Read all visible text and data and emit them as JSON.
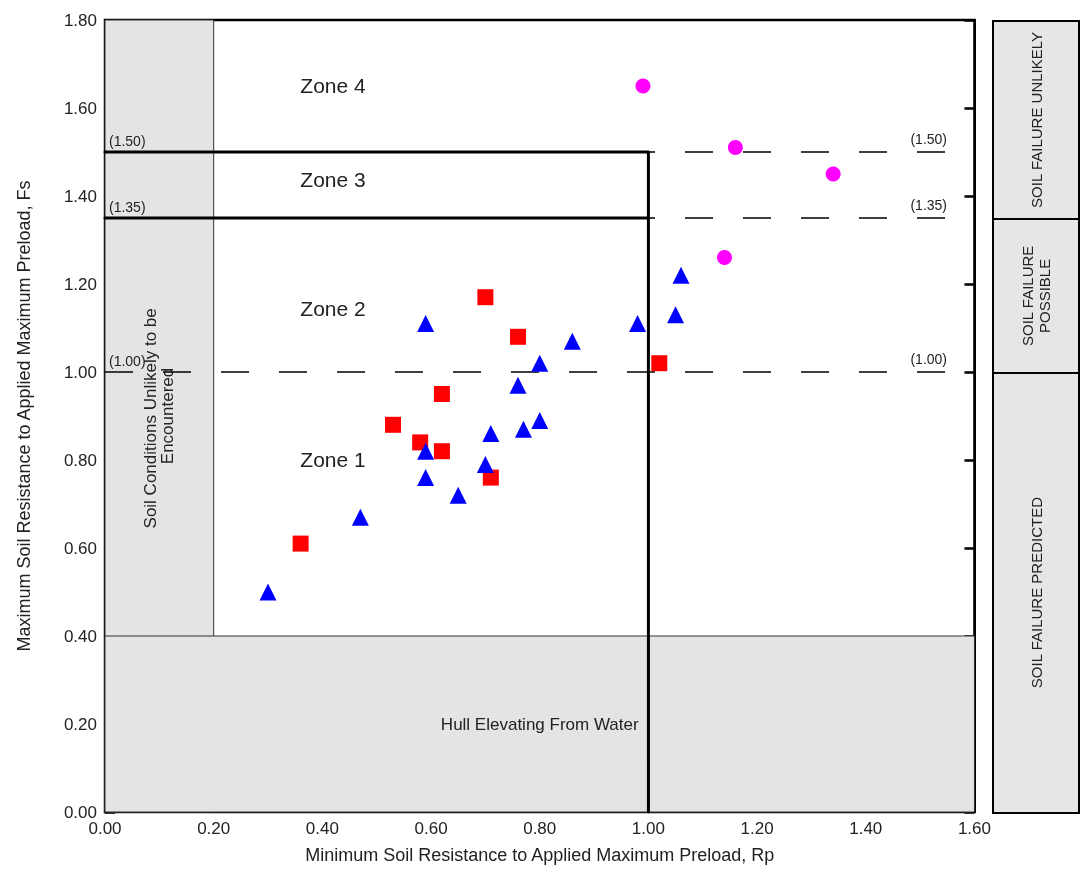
{
  "chart_data": [
    {
      "type": "scatter",
      "xlabel": "Minimum Soil Resistance to Applied Maximum Preload, Rp",
      "ylabel": "Maximum Soil Resistance to Applied Maximum Preload, Fs",
      "xlim": [
        0,
        1.6
      ],
      "ylim": [
        0,
        1.8
      ],
      "xticks": [
        {
          "value": 0,
          "label": "0.00"
        },
        {
          "value": 0.2,
          "label": "0.20"
        },
        {
          "value": 0.4,
          "label": "0.40"
        },
        {
          "value": 0.6,
          "label": "0.60"
        },
        {
          "value": 0.8,
          "label": "0.80"
        },
        {
          "value": 1,
          "label": "1.00"
        },
        {
          "value": 1.2,
          "label": "1.20"
        },
        {
          "value": 1.4,
          "label": "1.40"
        },
        {
          "value": 1.6,
          "label": "1.60"
        }
      ],
      "yticks": [
        {
          "value": 0,
          "label": "0.00"
        },
        {
          "value": 0.2,
          "label": "0.20"
        },
        {
          "value": 0.4,
          "label": "0.40"
        },
        {
          "value": 0.6,
          "label": "0.60"
        },
        {
          "value": 0.8,
          "label": "0.80"
        },
        {
          "value": 1,
          "label": "1.00"
        },
        {
          "value": 1.2,
          "label": "1.20"
        },
        {
          "value": 1.4,
          "label": "1.40"
        },
        {
          "value": 1.6,
          "label": "1.60"
        },
        {
          "value": 1.8,
          "label": "1.80"
        }
      ],
      "grid": false,
      "series": [
        {
          "type": "line",
          "color": "#000000",
          "marker": "none",
          "line_style": "solid",
          "x": [
            0,
            1,
            1
          ],
          "values": [
            1.5,
            1.5,
            0
          ]
        },
        {
          "type": "line",
          "color": "#000000",
          "marker": "none",
          "line_style": "solid",
          "x": [
            0,
            1
          ],
          "values": [
            1.35,
            1.35
          ]
        },
        {
          "type": "scatter",
          "color": "#ff0000",
          "marker": "square",
          "x": [
            0.7,
            0.76,
            0.62,
            0.53,
            0.58,
            0.62,
            0.71,
            0.36,
            1.02
          ],
          "values": [
            1.17,
            1.08,
            0.95,
            0.88,
            0.84,
            0.82,
            0.76,
            0.61,
            1.02
          ]
        },
        {
          "type": "scatter",
          "color": "#0000ff",
          "marker": "triangle",
          "x": [
            0.59,
            0.86,
            0.8,
            0.76,
            0.71,
            0.77,
            0.8,
            0.59,
            0.7,
            0.59,
            0.65,
            0.47,
            0.3,
            0.98,
            1.05,
            1.06
          ],
          "values": [
            1.11,
            1.07,
            1.02,
            0.97,
            0.86,
            0.87,
            0.89,
            0.82,
            0.79,
            0.76,
            0.72,
            0.67,
            0.5,
            1.11,
            1.13,
            1.22
          ]
        },
        {
          "type": "scatter",
          "color": "#ff00ff",
          "marker": "circle",
          "x": [
            0.99,
            1.16,
            1.34,
            1.14
          ],
          "values": [
            1.65,
            1.51,
            1.45,
            1.26
          ]
        }
      ],
      "ref_lines": [
        {
          "axis": "y",
          "value": 1.5,
          "label": "(1.50)",
          "color": "#000000",
          "line_style": "dashed"
        },
        {
          "axis": "y",
          "value": 1.35,
          "label": "(1.35)",
          "color": "#000000",
          "line_style": "dashed"
        },
        {
          "axis": "y",
          "value": 1,
          "label": "(1.00)",
          "color": "#000000",
          "line_style": "dashed"
        }
      ],
      "bands": [
        {
          "axis": "x",
          "from": 0,
          "to": 0.2,
          "label": "Soil Conditions Unlikely to be Encountered",
          "color": "#e4e4e4"
        },
        {
          "axis": "y",
          "from": 0,
          "to": 0.4,
          "label": "Hull Elevating From Water",
          "color": "#e4e4e4"
        }
      ],
      "annotations": [
        "Zone 4",
        "Zone 3",
        "Zone 2",
        "Zone 1"
      ]
    },
    {
      "type": "other",
      "annotations": [
        "SOIL FAILURE UNLIKELY",
        "SOIL FAILURE POSSIBLE",
        "SOIL FAILURE PREDICTED"
      ]
    }
  ]
}
